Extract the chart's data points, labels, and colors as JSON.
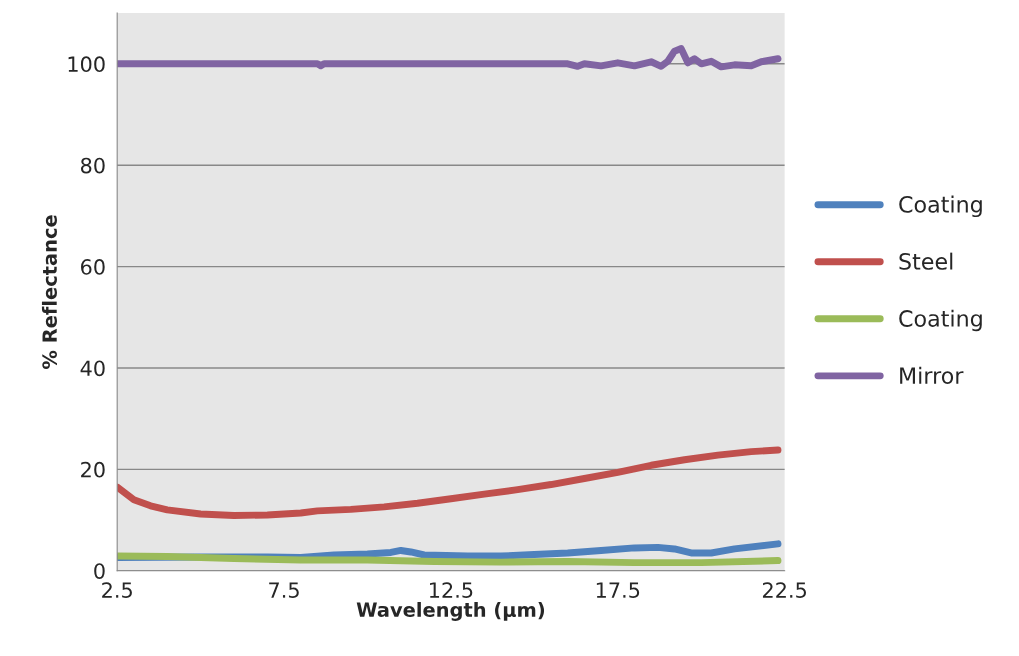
{
  "chart_data": {
    "type": "line",
    "xlabel": "Wavelength (µm)",
    "ylabel": "% Reflectance",
    "xlim": [
      2.5,
      22.5
    ],
    "xticks": [
      2.5,
      7.5,
      12.5,
      17.5,
      22.5
    ],
    "ylim": [
      0,
      110
    ],
    "yticks": [
      0,
      20,
      40,
      60,
      80,
      100
    ],
    "grid": "y",
    "legend": "right",
    "marker": "none",
    "line_style": "solid",
    "series": [
      {
        "name": "Coating",
        "color": "#4f81bd",
        "x": [
          2.5,
          5,
          7,
          8,
          9,
          10,
          10.7,
          11,
          11.3,
          11.7,
          13,
          14,
          15,
          16,
          17,
          18,
          18.7,
          19.2,
          19.7,
          20.3,
          21,
          22.3
        ],
        "values": [
          2.6,
          2.7,
          2.7,
          2.6,
          3.1,
          3.3,
          3.6,
          4,
          3.7,
          3.1,
          2.9,
          2.9,
          3.2,
          3.5,
          4.0,
          4.5,
          4.6,
          4.3,
          3.5,
          3.5,
          4.3,
          5.3
        ]
      },
      {
        "name": "Steel",
        "color": "#c0504d",
        "x": [
          2.5,
          3,
          3.5,
          4,
          5,
          6,
          7,
          8,
          8.5,
          9.5,
          10.5,
          11.5,
          12.5,
          13.5,
          14.5,
          15.5,
          16.5,
          17.5,
          18.5,
          19.5,
          20.5,
          21.5,
          22.3
        ],
        "values": [
          16.5,
          14,
          12.8,
          12,
          11.2,
          10.9,
          11,
          11.4,
          11.8,
          12.1,
          12.6,
          13.3,
          14.2,
          15.1,
          16,
          17,
          18.2,
          19.4,
          20.8,
          21.9,
          22.8,
          23.5,
          23.8
        ]
      },
      {
        "name": "Coating",
        "color": "#9bbb59",
        "x": [
          2.5,
          4,
          6,
          8,
          10,
          12,
          14,
          16,
          18,
          20,
          22.3
        ],
        "values": [
          2.9,
          2.8,
          2.4,
          2.1,
          2.1,
          1.8,
          1.7,
          1.8,
          1.6,
          1.6,
          2.0
        ]
      },
      {
        "name": "Mirror",
        "color": "#8064a2",
        "x": [
          2.5,
          8.5,
          8.6,
          8.7,
          16,
          16.3,
          16.5,
          17,
          17.5,
          18,
          18.5,
          18.8,
          19,
          19.2,
          19.4,
          19.6,
          19.8,
          20,
          20.3,
          20.6,
          21,
          21.5,
          21.8,
          22.3
        ],
        "values": [
          100,
          100,
          99.6,
          100,
          100,
          99.5,
          100,
          99.6,
          100.2,
          99.6,
          100.4,
          99.5,
          100.5,
          102.5,
          103,
          100.2,
          101,
          100,
          100.5,
          99.4,
          99.8,
          99.6,
          100.4,
          101
        ]
      }
    ]
  }
}
